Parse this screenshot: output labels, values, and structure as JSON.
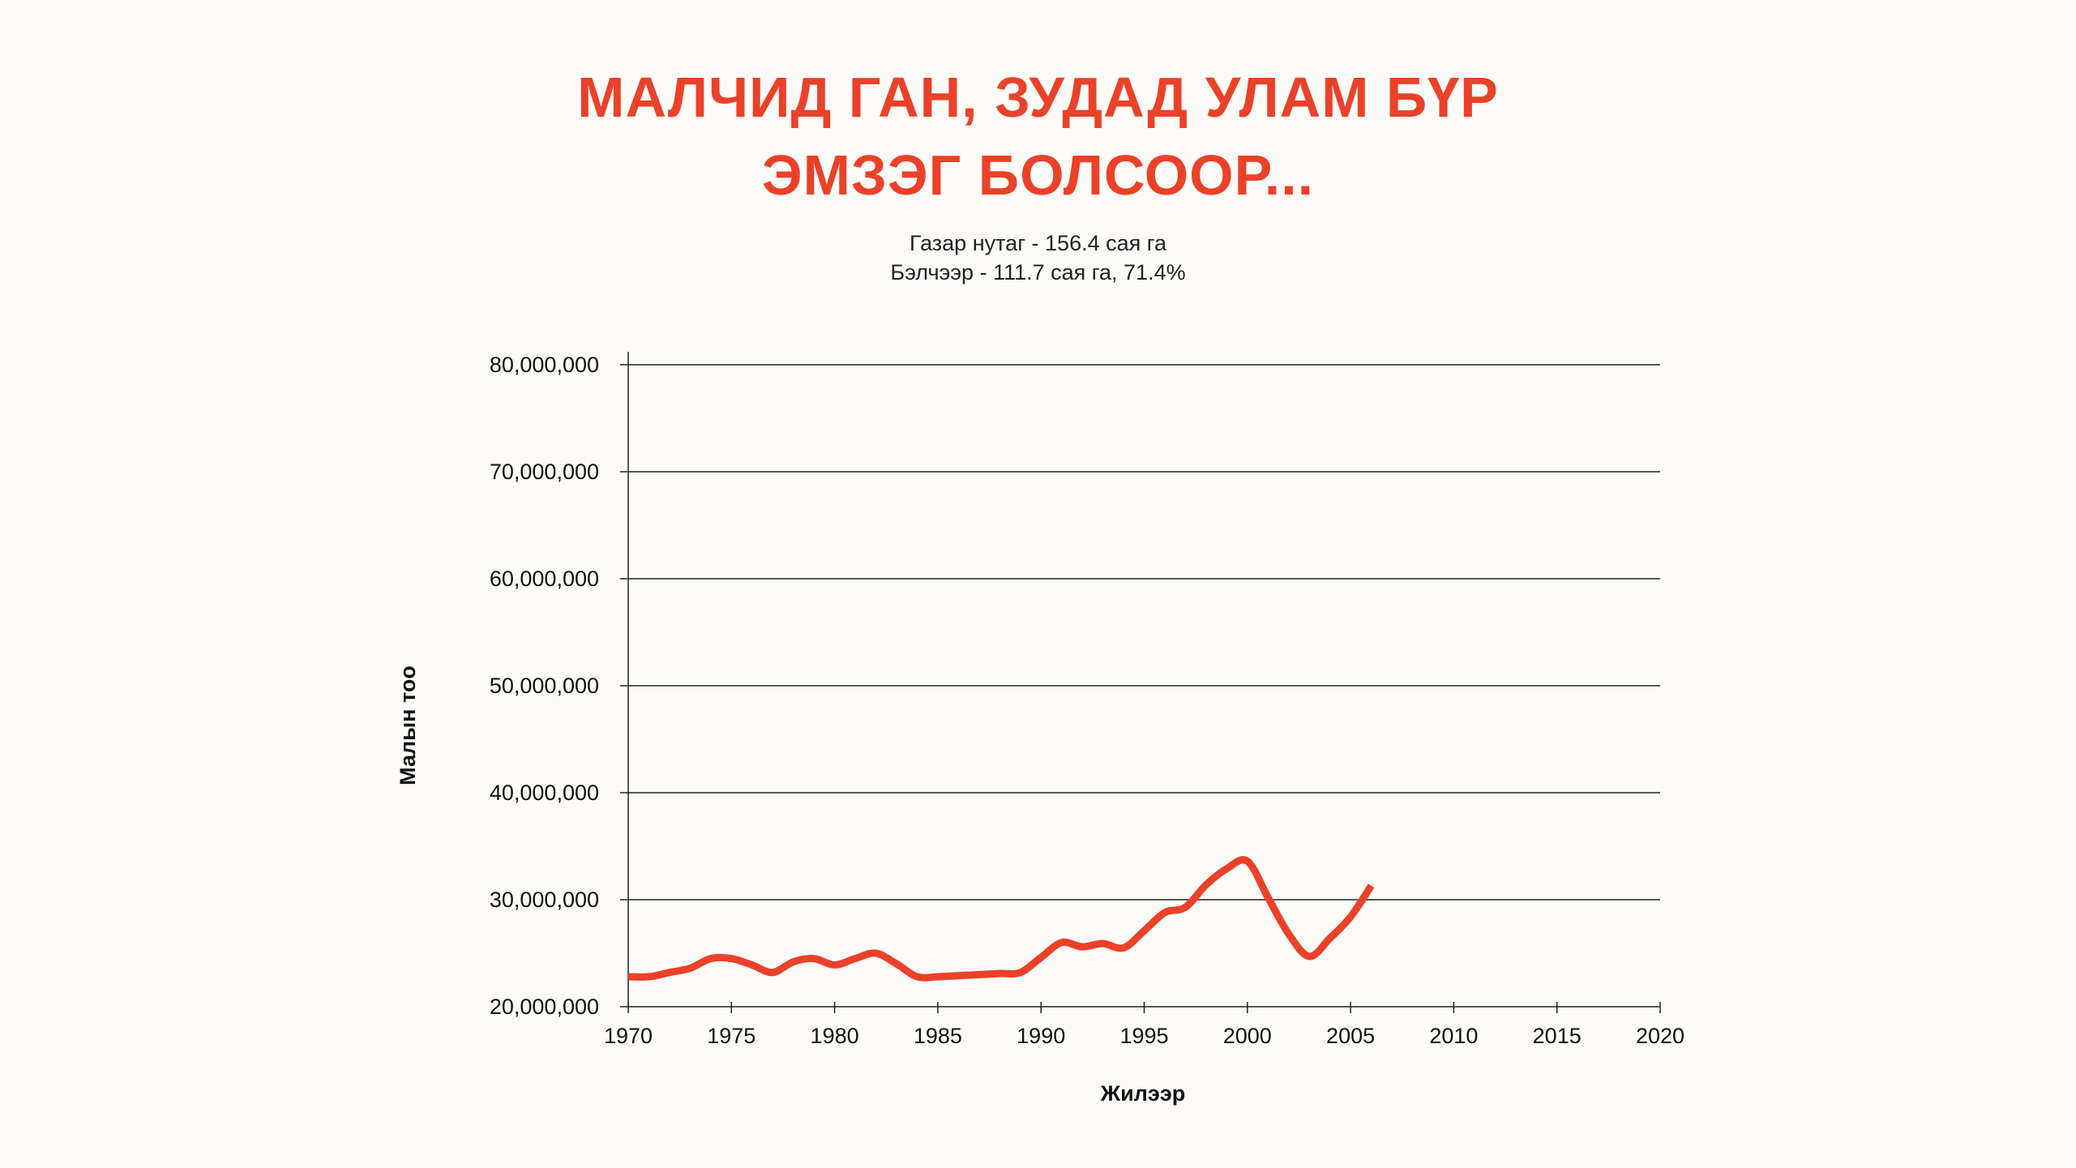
{
  "header": {
    "title_line1": "МАЛЧИД ГАН, ЗУДАД УЛАМ БҮР",
    "title_line2": "ЭМЗЭГ БОЛСООР...",
    "subtitle_line1": "Газар нутаг - 156.4 сая га",
    "subtitle_line2": "Бэлчээр - 111.7 сая га, 71.4%"
  },
  "colors": {
    "accent": "#eb4129",
    "background": "#fdfbf8",
    "grid": "#222222"
  },
  "chart_data": {
    "type": "line",
    "title": "",
    "xlabel": "Жилээр",
    "ylabel": "Малын тоо",
    "xlim": [
      1970,
      2020
    ],
    "ylim": [
      20000000,
      80000000
    ],
    "x_ticks": [
      1970,
      1975,
      1980,
      1985,
      1990,
      1995,
      2000,
      2005,
      2010,
      2015,
      2020
    ],
    "x_tick_labels": [
      "1970",
      "1975",
      "1980",
      "1985",
      "1990",
      "1995",
      "2000",
      "2005",
      "2010",
      "2015",
      "2020"
    ],
    "y_ticks": [
      20000000,
      30000000,
      40000000,
      50000000,
      60000000,
      70000000,
      80000000
    ],
    "y_tick_labels": [
      "20,000,000",
      "30,000,000",
      "40,000,000",
      "50,000,000",
      "60,000,000",
      "70,000,000",
      "80,000,000"
    ],
    "grid": "horizontal",
    "series": [
      {
        "color": "#eb4129",
        "x": [
          1970,
          1971,
          1972,
          1973,
          1974,
          1975,
          1976,
          1977,
          1978,
          1979,
          1980,
          1981,
          1982,
          1983,
          1984,
          1985,
          1986,
          1987,
          1988,
          1989,
          1990,
          1991,
          1992,
          1993,
          1994,
          1995,
          1996,
          1997,
          1998,
          1999,
          2000,
          2001,
          2002,
          2003,
          2004,
          2005,
          2006
        ],
        "y": [
          22800000,
          22800000,
          23200000,
          23600000,
          24500000,
          24500000,
          23900000,
          23200000,
          24200000,
          24500000,
          23900000,
          24500000,
          25000000,
          24000000,
          22800000,
          22800000,
          22900000,
          23000000,
          23100000,
          23200000,
          24600000,
          26000000,
          25600000,
          25900000,
          25500000,
          27100000,
          28800000,
          29300000,
          31400000,
          32900000,
          33600000,
          30200000,
          26800000,
          24700000,
          26400000,
          28400000,
          31300000
        ]
      }
    ]
  }
}
